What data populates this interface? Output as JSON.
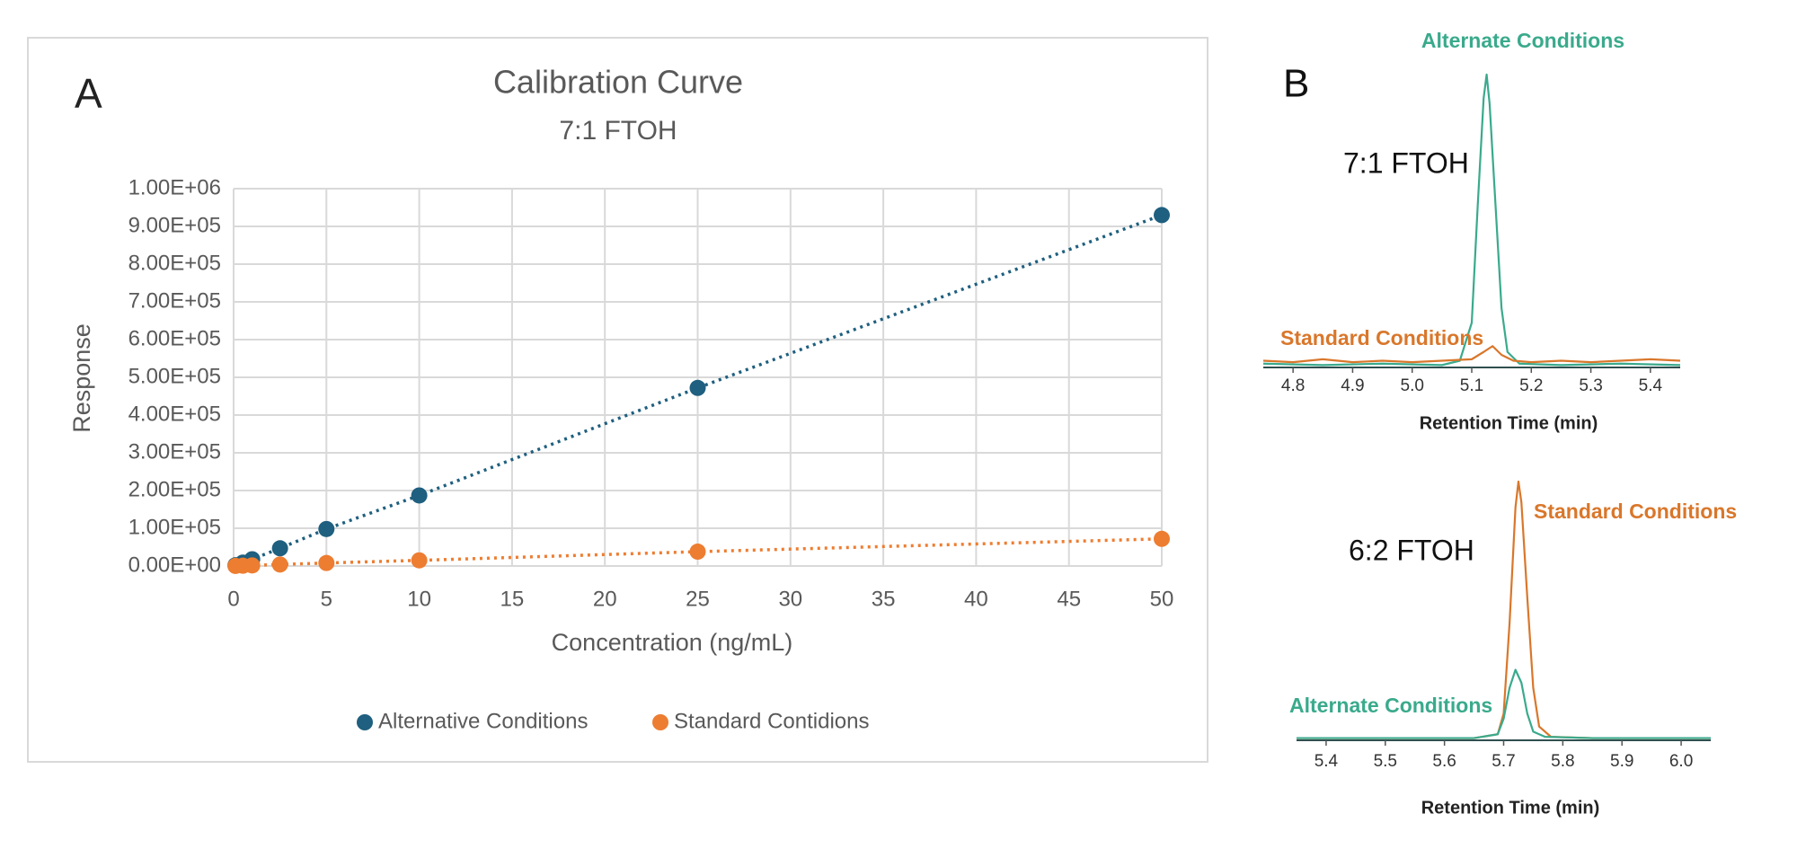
{
  "chart_data": [
    {
      "type": "scatter",
      "panel_label": "A",
      "title": "Calibration Curve",
      "subtitle": "7:1 FTOH",
      "x_label": "Concentration (ng/mL)",
      "y_label": "Response",
      "x": [
        0.1,
        0.5,
        1,
        2.5,
        5,
        10,
        25,
        50
      ],
      "series": [
        {
          "name": "Alternative Conditions",
          "color": "#1f5f7f",
          "values": [
            2000,
            9000,
            18000,
            47000,
            98000,
            187000,
            472000,
            930000
          ]
        },
        {
          "name": "Standard Contidions",
          "color": "#ed7d31",
          "values": [
            200,
            800,
            1600,
            4000,
            8000,
            15000,
            38000,
            72000
          ]
        }
      ],
      "xlim": [
        0,
        50
      ],
      "xticks": [
        0,
        5,
        10,
        15,
        20,
        25,
        30,
        35,
        40,
        45,
        50
      ],
      "ylim": [
        0,
        1000000
      ],
      "yticks": [
        {
          "value": 0,
          "label": "0.00E+00"
        },
        {
          "value": 100000,
          "label": "1.00E+05"
        },
        {
          "value": 200000,
          "label": "2.00E+05"
        },
        {
          "value": 300000,
          "label": "3.00E+05"
        },
        {
          "value": 400000,
          "label": "4.00E+05"
        },
        {
          "value": 500000,
          "label": "5.00E+05"
        },
        {
          "value": 600000,
          "label": "6.00E+05"
        },
        {
          "value": 700000,
          "label": "7.00E+05"
        },
        {
          "value": 800000,
          "label": "8.00E+05"
        },
        {
          "value": 900000,
          "label": "9.00E+05"
        },
        {
          "value": 1000000,
          "label": "1.00E+06"
        }
      ],
      "grid": true,
      "legend": "bottom"
    },
    {
      "type": "line",
      "panel_label": "B",
      "title": "7:1 FTOH",
      "x_label": "Retention Time (min)",
      "series": [
        {
          "name": "Alternate Conditions",
          "color": "#3aaa8c",
          "x": [
            4.75,
            4.85,
            4.95,
            5.05,
            5.08,
            5.1,
            5.11,
            5.12,
            5.125,
            5.13,
            5.14,
            5.15,
            5.16,
            5.18,
            5.25,
            5.35,
            5.45
          ],
          "values": [
            1,
            0.5,
            1,
            0.5,
            2,
            15,
            55,
            92,
            100,
            90,
            55,
            20,
            5,
            1,
            0.5,
            1,
            0.5
          ]
        },
        {
          "name": "Standard Conditions",
          "color": "#d9772b",
          "x": [
            4.75,
            4.8,
            4.85,
            4.9,
            4.95,
            5.0,
            5.05,
            5.1,
            5.12,
            5.135,
            5.15,
            5.17,
            5.2,
            5.25,
            5.3,
            5.35,
            5.4,
            5.45
          ],
          "values": [
            2,
            1.5,
            2.5,
            1.5,
            2,
            1.5,
            2,
            2.5,
            5,
            7,
            4,
            2,
            1.5,
            2,
            1.5,
            2,
            2.5,
            2
          ]
        }
      ],
      "xlim": [
        4.75,
        5.45
      ],
      "xticks": [
        4.8,
        4.9,
        {
          "value": 5,
          "label": "5.0"
        },
        5.1,
        5.2,
        5.3,
        5.4
      ],
      "ylim": [
        0,
        100
      ]
    },
    {
      "type": "line",
      "title": "6:2 FTOH",
      "x_label": "Retention Time (min)",
      "series": [
        {
          "name": "Standard Conditions",
          "color": "#d9772b",
          "x": [
            5.35,
            5.5,
            5.65,
            5.69,
            5.7,
            5.71,
            5.72,
            5.725,
            5.73,
            5.74,
            5.75,
            5.76,
            5.78,
            5.85,
            6.05
          ],
          "values": [
            0.5,
            0.5,
            0.5,
            2,
            10,
            45,
            90,
            100,
            92,
            55,
            20,
            5,
            1,
            0.5,
            0.5
          ]
        },
        {
          "name": "Alternate Conditions",
          "color": "#3aaa8c",
          "x": [
            5.35,
            5.5,
            5.65,
            5.69,
            5.7,
            5.71,
            5.72,
            5.73,
            5.74,
            5.75,
            5.77,
            5.85,
            6.05
          ],
          "values": [
            0.5,
            0.5,
            0.5,
            2,
            8,
            20,
            27,
            22,
            10,
            3,
            1,
            0.5,
            0.5
          ]
        }
      ],
      "xlim": [
        5.35,
        6.05
      ],
      "xticks": [
        5.4,
        5.5,
        5.6,
        5.7,
        5.8,
        5.9,
        {
          "value": 6,
          "label": "6.0"
        }
      ],
      "ylim": [
        0,
        100
      ]
    }
  ]
}
